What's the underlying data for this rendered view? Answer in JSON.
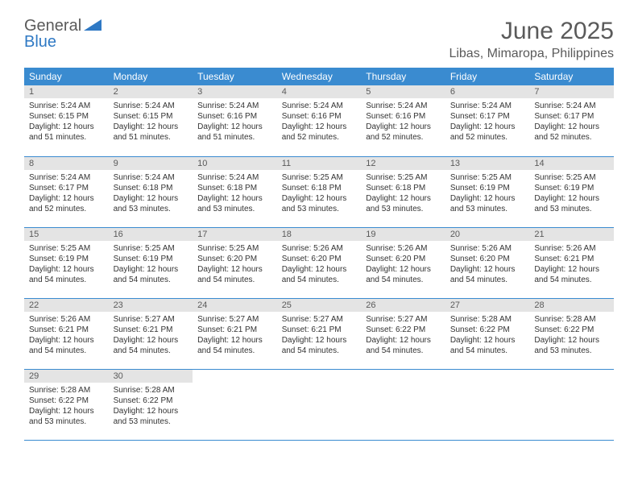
{
  "brand": {
    "line1": "General",
    "line2": "Blue"
  },
  "title": "June 2025",
  "location": "Libas, Mimaropa, Philippines",
  "colors": {
    "header_bg": "#3a8bd0",
    "header_text": "#ffffff",
    "daynum_bg": "#e4e4e4",
    "text_muted": "#5a5a5a",
    "text_body": "#333333",
    "row_border": "#3a8bd0",
    "logo_blue": "#2f79c4"
  },
  "weekdays": [
    "Sunday",
    "Monday",
    "Tuesday",
    "Wednesday",
    "Thursday",
    "Friday",
    "Saturday"
  ],
  "weeks": [
    [
      {
        "n": "1",
        "sunrise": "5:24 AM",
        "sunset": "6:15 PM",
        "daylight": "12 hours and 51 minutes."
      },
      {
        "n": "2",
        "sunrise": "5:24 AM",
        "sunset": "6:15 PM",
        "daylight": "12 hours and 51 minutes."
      },
      {
        "n": "3",
        "sunrise": "5:24 AM",
        "sunset": "6:16 PM",
        "daylight": "12 hours and 51 minutes."
      },
      {
        "n": "4",
        "sunrise": "5:24 AM",
        "sunset": "6:16 PM",
        "daylight": "12 hours and 52 minutes."
      },
      {
        "n": "5",
        "sunrise": "5:24 AM",
        "sunset": "6:16 PM",
        "daylight": "12 hours and 52 minutes."
      },
      {
        "n": "6",
        "sunrise": "5:24 AM",
        "sunset": "6:17 PM",
        "daylight": "12 hours and 52 minutes."
      },
      {
        "n": "7",
        "sunrise": "5:24 AM",
        "sunset": "6:17 PM",
        "daylight": "12 hours and 52 minutes."
      }
    ],
    [
      {
        "n": "8",
        "sunrise": "5:24 AM",
        "sunset": "6:17 PM",
        "daylight": "12 hours and 52 minutes."
      },
      {
        "n": "9",
        "sunrise": "5:24 AM",
        "sunset": "6:18 PM",
        "daylight": "12 hours and 53 minutes."
      },
      {
        "n": "10",
        "sunrise": "5:24 AM",
        "sunset": "6:18 PM",
        "daylight": "12 hours and 53 minutes."
      },
      {
        "n": "11",
        "sunrise": "5:25 AM",
        "sunset": "6:18 PM",
        "daylight": "12 hours and 53 minutes."
      },
      {
        "n": "12",
        "sunrise": "5:25 AM",
        "sunset": "6:18 PM",
        "daylight": "12 hours and 53 minutes."
      },
      {
        "n": "13",
        "sunrise": "5:25 AM",
        "sunset": "6:19 PM",
        "daylight": "12 hours and 53 minutes."
      },
      {
        "n": "14",
        "sunrise": "5:25 AM",
        "sunset": "6:19 PM",
        "daylight": "12 hours and 53 minutes."
      }
    ],
    [
      {
        "n": "15",
        "sunrise": "5:25 AM",
        "sunset": "6:19 PM",
        "daylight": "12 hours and 54 minutes."
      },
      {
        "n": "16",
        "sunrise": "5:25 AM",
        "sunset": "6:19 PM",
        "daylight": "12 hours and 54 minutes."
      },
      {
        "n": "17",
        "sunrise": "5:25 AM",
        "sunset": "6:20 PM",
        "daylight": "12 hours and 54 minutes."
      },
      {
        "n": "18",
        "sunrise": "5:26 AM",
        "sunset": "6:20 PM",
        "daylight": "12 hours and 54 minutes."
      },
      {
        "n": "19",
        "sunrise": "5:26 AM",
        "sunset": "6:20 PM",
        "daylight": "12 hours and 54 minutes."
      },
      {
        "n": "20",
        "sunrise": "5:26 AM",
        "sunset": "6:20 PM",
        "daylight": "12 hours and 54 minutes."
      },
      {
        "n": "21",
        "sunrise": "5:26 AM",
        "sunset": "6:21 PM",
        "daylight": "12 hours and 54 minutes."
      }
    ],
    [
      {
        "n": "22",
        "sunrise": "5:26 AM",
        "sunset": "6:21 PM",
        "daylight": "12 hours and 54 minutes."
      },
      {
        "n": "23",
        "sunrise": "5:27 AM",
        "sunset": "6:21 PM",
        "daylight": "12 hours and 54 minutes."
      },
      {
        "n": "24",
        "sunrise": "5:27 AM",
        "sunset": "6:21 PM",
        "daylight": "12 hours and 54 minutes."
      },
      {
        "n": "25",
        "sunrise": "5:27 AM",
        "sunset": "6:21 PM",
        "daylight": "12 hours and 54 minutes."
      },
      {
        "n": "26",
        "sunrise": "5:27 AM",
        "sunset": "6:22 PM",
        "daylight": "12 hours and 54 minutes."
      },
      {
        "n": "27",
        "sunrise": "5:28 AM",
        "sunset": "6:22 PM",
        "daylight": "12 hours and 54 minutes."
      },
      {
        "n": "28",
        "sunrise": "5:28 AM",
        "sunset": "6:22 PM",
        "daylight": "12 hours and 53 minutes."
      }
    ],
    [
      {
        "n": "29",
        "sunrise": "5:28 AM",
        "sunset": "6:22 PM",
        "daylight": "12 hours and 53 minutes."
      },
      {
        "n": "30",
        "sunrise": "5:28 AM",
        "sunset": "6:22 PM",
        "daylight": "12 hours and 53 minutes."
      },
      null,
      null,
      null,
      null,
      null
    ]
  ],
  "labels": {
    "sunrise_prefix": "Sunrise: ",
    "sunset_prefix": "Sunset: ",
    "daylight_prefix": "Daylight: "
  }
}
